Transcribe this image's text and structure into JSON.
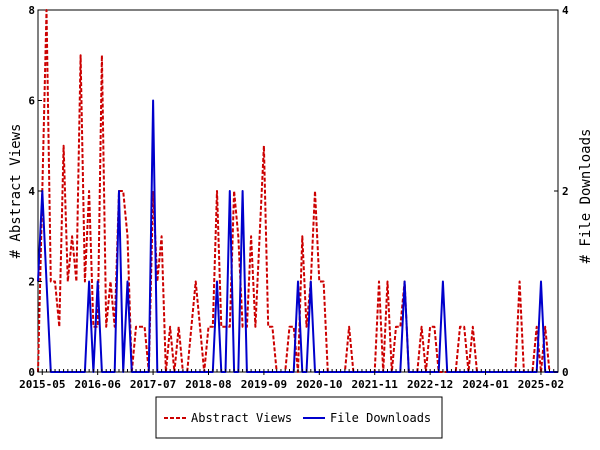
{
  "chart_data": {
    "type": "line",
    "xlabel": "",
    "ylabel_left": "# Abstract Views",
    "ylabel_right": "# File Downloads",
    "x_tick_labels": [
      "2015-05",
      "2016-06",
      "2017-07",
      "2018-08",
      "2019-09",
      "2020-10",
      "2021-11",
      "2022-12",
      "2024-01",
      "2025-02"
    ],
    "ylim_left": [
      0,
      8
    ],
    "ylim_right": [
      0,
      4
    ],
    "y_ticks_left": [
      "0",
      "2",
      "4",
      "6",
      "8"
    ],
    "y_ticks_right": [
      "0",
      "2",
      "4"
    ],
    "x_start": "2015-04",
    "x_end": "2025-06",
    "legend_position": "bottom-center",
    "grid": false,
    "series": [
      {
        "name": "Abstract Views",
        "axis": "left",
        "color": "#cc0000",
        "style": "dashed",
        "points": [
          [
            "2015-04",
            0
          ],
          [
            "2015-05",
            4
          ],
          [
            "2015-06",
            8
          ],
          [
            "2015-07",
            2
          ],
          [
            "2015-08",
            2
          ],
          [
            "2015-09",
            1
          ],
          [
            "2015-10",
            5
          ],
          [
            "2015-11",
            2
          ],
          [
            "2015-12",
            3
          ],
          [
            "2016-01",
            2
          ],
          [
            "2016-02",
            7
          ],
          [
            "2016-03",
            2
          ],
          [
            "2016-04",
            4
          ],
          [
            "2016-05",
            1
          ],
          [
            "2016-06",
            1
          ],
          [
            "2016-07",
            7
          ],
          [
            "2016-08",
            1
          ],
          [
            "2016-09",
            2
          ],
          [
            "2016-10",
            1
          ],
          [
            "2016-11",
            4
          ],
          [
            "2016-12",
            4
          ],
          [
            "2017-01",
            3
          ],
          [
            "2017-02",
            0
          ],
          [
            "2017-03",
            1
          ],
          [
            "2017-04",
            1
          ],
          [
            "2017-05",
            1
          ],
          [
            "2017-06",
            0
          ],
          [
            "2017-07",
            4
          ],
          [
            "2017-08",
            2
          ],
          [
            "2017-09",
            3
          ],
          [
            "2017-10",
            0
          ],
          [
            "2017-11",
            1
          ],
          [
            "2017-12",
            0
          ],
          [
            "2018-01",
            1
          ],
          [
            "2018-02",
            0
          ],
          [
            "2018-03",
            0
          ],
          [
            "2018-04",
            1
          ],
          [
            "2018-05",
            2
          ],
          [
            "2018-06",
            1
          ],
          [
            "2018-07",
            0
          ],
          [
            "2018-08",
            1
          ],
          [
            "2018-09",
            1
          ],
          [
            "2018-10",
            4
          ],
          [
            "2018-11",
            1
          ],
          [
            "2018-12",
            1
          ],
          [
            "2019-01",
            1
          ],
          [
            "2019-02",
            4
          ],
          [
            "2019-03",
            3
          ],
          [
            "2019-04",
            1
          ],
          [
            "2019-05",
            1
          ],
          [
            "2019-06",
            3
          ],
          [
            "2019-07",
            1
          ],
          [
            "2019-08",
            3
          ],
          [
            "2019-09",
            5
          ],
          [
            "2019-10",
            1
          ],
          [
            "2019-11",
            1
          ],
          [
            "2019-12",
            0
          ],
          [
            "2020-01",
            0
          ],
          [
            "2020-02",
            0
          ],
          [
            "2020-03",
            1
          ],
          [
            "2020-04",
            1
          ],
          [
            "2020-05",
            0
          ],
          [
            "2020-06",
            3
          ],
          [
            "2020-07",
            1
          ],
          [
            "2020-08",
            2
          ],
          [
            "2020-09",
            4
          ],
          [
            "2020-10",
            2
          ],
          [
            "2020-11",
            2
          ],
          [
            "2020-12",
            0
          ],
          [
            "2021-01",
            0
          ],
          [
            "2021-02",
            0
          ],
          [
            "2021-03",
            0
          ],
          [
            "2021-04",
            0
          ],
          [
            "2021-05",
            1
          ],
          [
            "2021-06",
            0
          ],
          [
            "2021-07",
            0
          ],
          [
            "2021-08",
            0
          ],
          [
            "2021-09",
            0
          ],
          [
            "2021-10",
            0
          ],
          [
            "2021-11",
            0
          ],
          [
            "2021-12",
            2
          ],
          [
            "2022-01",
            0
          ],
          [
            "2022-02",
            2
          ],
          [
            "2022-03",
            0
          ],
          [
            "2022-04",
            1
          ],
          [
            "2022-05",
            1
          ],
          [
            "2022-06",
            2
          ],
          [
            "2022-07",
            0
          ],
          [
            "2022-08",
            0
          ],
          [
            "2022-09",
            0
          ],
          [
            "2022-10",
            1
          ],
          [
            "2022-11",
            0
          ],
          [
            "2022-12",
            1
          ],
          [
            "2023-01",
            1
          ],
          [
            "2023-02",
            0
          ],
          [
            "2023-03",
            0
          ],
          [
            "2023-04",
            0
          ],
          [
            "2023-05",
            0
          ],
          [
            "2023-06",
            0
          ],
          [
            "2023-07",
            1
          ],
          [
            "2023-08",
            1
          ],
          [
            "2023-09",
            0
          ],
          [
            "2023-10",
            1
          ],
          [
            "2023-11",
            0
          ],
          [
            "2023-12",
            0
          ],
          [
            "2024-01",
            0
          ],
          [
            "2024-02",
            0
          ],
          [
            "2024-03",
            0
          ],
          [
            "2024-04",
            0
          ],
          [
            "2024-05",
            0
          ],
          [
            "2024-06",
            0
          ],
          [
            "2024-07",
            0
          ],
          [
            "2024-08",
            0
          ],
          [
            "2024-09",
            2
          ],
          [
            "2024-10",
            0
          ],
          [
            "2024-11",
            0
          ],
          [
            "2024-12",
            0
          ],
          [
            "2025-01",
            1
          ],
          [
            "2025-02",
            0
          ],
          [
            "2025-03",
            1
          ],
          [
            "2025-04",
            0
          ],
          [
            "2025-05",
            0
          ],
          [
            "2025-06",
            0
          ]
        ]
      },
      {
        "name": "File Downloads",
        "axis": "right",
        "color": "#0000cc",
        "style": "solid",
        "points": [
          [
            "2015-04",
            1
          ],
          [
            "2015-05",
            2
          ],
          [
            "2015-06",
            1
          ],
          [
            "2015-07",
            0
          ],
          [
            "2015-08",
            0
          ],
          [
            "2015-09",
            0
          ],
          [
            "2015-10",
            0
          ],
          [
            "2015-11",
            0
          ],
          [
            "2015-12",
            0
          ],
          [
            "2016-01",
            0
          ],
          [
            "2016-02",
            0
          ],
          [
            "2016-03",
            0
          ],
          [
            "2016-04",
            1
          ],
          [
            "2016-05",
            0
          ],
          [
            "2016-06",
            1
          ],
          [
            "2016-07",
            0
          ],
          [
            "2016-08",
            0
          ],
          [
            "2016-09",
            0
          ],
          [
            "2016-10",
            0
          ],
          [
            "2016-11",
            2
          ],
          [
            "2016-12",
            0
          ],
          [
            "2017-01",
            1
          ],
          [
            "2017-02",
            0
          ],
          [
            "2017-03",
            0
          ],
          [
            "2017-04",
            0
          ],
          [
            "2017-05",
            0
          ],
          [
            "2017-06",
            0
          ],
          [
            "2017-07",
            3
          ],
          [
            "2017-08",
            0
          ],
          [
            "2017-09",
            0
          ],
          [
            "2017-10",
            0
          ],
          [
            "2017-11",
            0
          ],
          [
            "2017-12",
            0
          ],
          [
            "2018-01",
            0
          ],
          [
            "2018-02",
            0
          ],
          [
            "2018-03",
            0
          ],
          [
            "2018-04",
            0
          ],
          [
            "2018-05",
            0
          ],
          [
            "2018-06",
            0
          ],
          [
            "2018-07",
            0
          ],
          [
            "2018-08",
            0
          ],
          [
            "2018-09",
            0
          ],
          [
            "2018-10",
            1
          ],
          [
            "2018-11",
            0
          ],
          [
            "2018-12",
            0
          ],
          [
            "2019-01",
            2
          ],
          [
            "2019-02",
            0
          ],
          [
            "2019-03",
            0
          ],
          [
            "2019-04",
            2
          ],
          [
            "2019-05",
            0
          ],
          [
            "2019-06",
            0
          ],
          [
            "2019-07",
            0
          ],
          [
            "2019-08",
            0
          ],
          [
            "2019-09",
            0
          ],
          [
            "2019-10",
            0
          ],
          [
            "2019-11",
            0
          ],
          [
            "2019-12",
            0
          ],
          [
            "2020-01",
            0
          ],
          [
            "2020-02",
            0
          ],
          [
            "2020-03",
            0
          ],
          [
            "2020-04",
            0
          ],
          [
            "2020-05",
            1
          ],
          [
            "2020-06",
            0
          ],
          [
            "2020-07",
            0
          ],
          [
            "2020-08",
            1
          ],
          [
            "2020-09",
            0
          ],
          [
            "2020-10",
            0
          ],
          [
            "2020-11",
            0
          ],
          [
            "2020-12",
            0
          ],
          [
            "2021-01",
            0
          ],
          [
            "2021-02",
            0
          ],
          [
            "2021-03",
            0
          ],
          [
            "2021-04",
            0
          ],
          [
            "2021-05",
            0
          ],
          [
            "2021-06",
            0
          ],
          [
            "2021-07",
            0
          ],
          [
            "2021-08",
            0
          ],
          [
            "2021-09",
            0
          ],
          [
            "2021-10",
            0
          ],
          [
            "2021-11",
            0
          ],
          [
            "2021-12",
            0
          ],
          [
            "2022-01",
            0
          ],
          [
            "2022-02",
            0
          ],
          [
            "2022-03",
            0
          ],
          [
            "2022-04",
            0
          ],
          [
            "2022-05",
            0
          ],
          [
            "2022-06",
            1
          ],
          [
            "2022-07",
            0
          ],
          [
            "2022-08",
            0
          ],
          [
            "2022-09",
            0
          ],
          [
            "2022-10",
            0
          ],
          [
            "2022-11",
            0
          ],
          [
            "2022-12",
            0
          ],
          [
            "2023-01",
            0
          ],
          [
            "2023-02",
            0
          ],
          [
            "2023-03",
            1
          ],
          [
            "2023-04",
            0
          ],
          [
            "2023-05",
            0
          ],
          [
            "2023-06",
            0
          ],
          [
            "2023-07",
            0
          ],
          [
            "2023-08",
            0
          ],
          [
            "2023-09",
            0
          ],
          [
            "2023-10",
            0
          ],
          [
            "2023-11",
            0
          ],
          [
            "2023-12",
            0
          ],
          [
            "2024-01",
            0
          ],
          [
            "2024-02",
            0
          ],
          [
            "2024-03",
            0
          ],
          [
            "2024-04",
            0
          ],
          [
            "2024-05",
            0
          ],
          [
            "2024-06",
            0
          ],
          [
            "2024-07",
            0
          ],
          [
            "2024-08",
            0
          ],
          [
            "2024-09",
            0
          ],
          [
            "2024-10",
            0
          ],
          [
            "2024-11",
            0
          ],
          [
            "2024-12",
            0
          ],
          [
            "2025-01",
            0
          ],
          [
            "2025-02",
            1
          ],
          [
            "2025-03",
            0
          ],
          [
            "2025-04",
            0
          ],
          [
            "2025-05",
            0
          ],
          [
            "2025-06",
            0
          ]
        ]
      }
    ]
  }
}
